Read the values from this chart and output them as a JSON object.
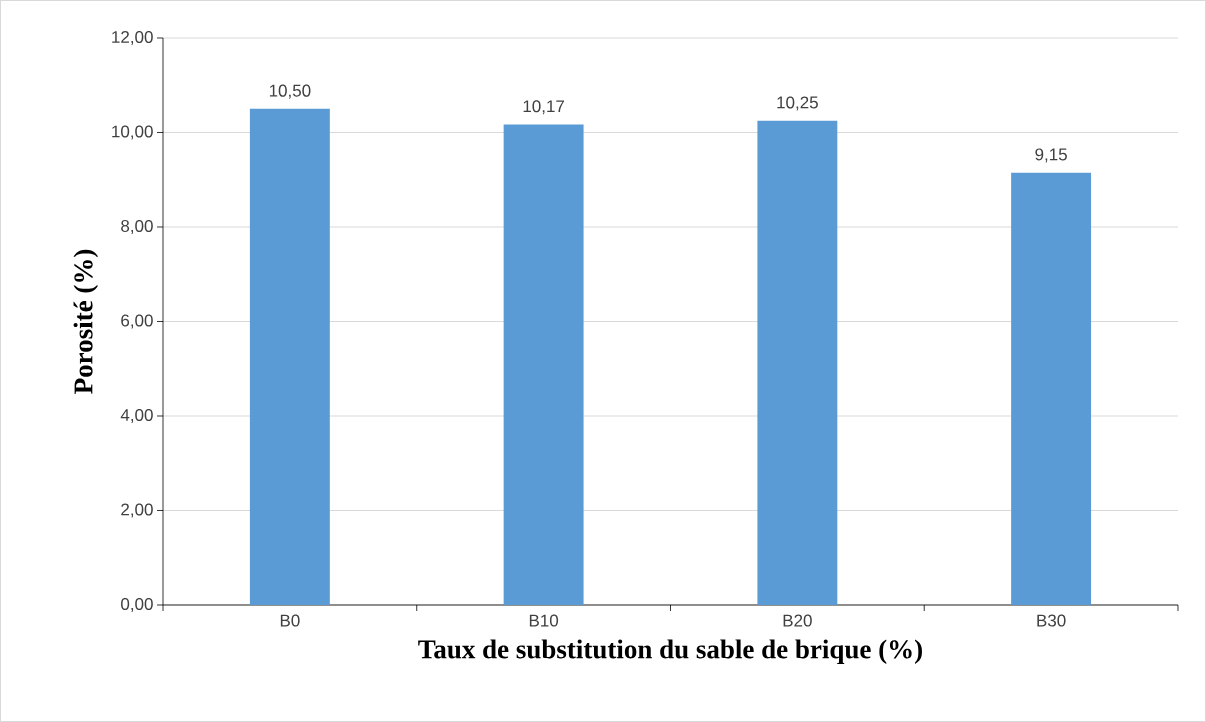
{
  "chart_data": {
    "type": "bar",
    "xlabel": "Taux de substitution du sable de brique (%)",
    "ylabel": "Porosité (%)",
    "categories": [
      "B0",
      "B10",
      "B20",
      "B30"
    ],
    "values": [
      10.5,
      10.17,
      10.25,
      9.15
    ],
    "value_labels": [
      "10,50",
      "10,17",
      "10,25",
      "9,15"
    ],
    "color": "#5b9bd5",
    "ylim": [
      0,
      12
    ],
    "yticks": [
      {
        "value": 0,
        "label": "0,00"
      },
      {
        "value": 2,
        "label": "2,00"
      },
      {
        "value": 4,
        "label": "4,00"
      },
      {
        "value": 6,
        "label": "6,00"
      },
      {
        "value": 8,
        "label": "8,00"
      },
      {
        "value": 10,
        "label": "10,00"
      },
      {
        "value": 12,
        "label": "12,00"
      }
    ],
    "grid": "y"
  }
}
